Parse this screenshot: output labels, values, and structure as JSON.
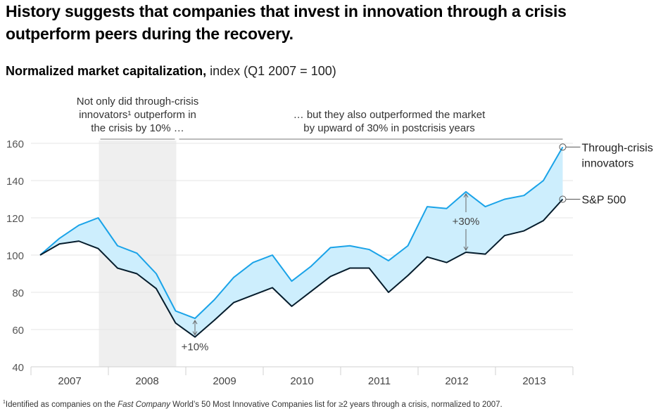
{
  "title": "History suggests that companies that invest in innovation through a crisis outperform peers during the recovery.",
  "subtitle": {
    "bold": "Normalized market capitalization,",
    "light": " index (Q1 2007 = 100)"
  },
  "annotations": {
    "crisis_lines": [
      "Not only did through-crisis",
      "innovators¹ outperform in",
      "the crisis by 10% …"
    ],
    "postcrisis_lines": [
      "… but they also outperformed the market",
      "by upward of 30% in postcrisis years"
    ],
    "crisis_gap_label": "+10%",
    "postcrisis_gap_label": "+30%"
  },
  "colors": {
    "innovators": "#1aa3e8",
    "sp500": "#051c2c",
    "fill": "#cdeefd",
    "crisis_shade": "#efefef"
  },
  "chart_data": {
    "type": "line",
    "title": "Normalized market capitalization, index (Q1 2007 = 100)",
    "xlabel": "",
    "ylabel": "",
    "ylim": [
      40,
      160
    ],
    "yticks": [
      40,
      60,
      80,
      100,
      120,
      140,
      160
    ],
    "year_labels": [
      "2007",
      "2008",
      "2009",
      "2010",
      "2011",
      "2012",
      "2013"
    ],
    "x": [
      "Q1 2007",
      "Q2 2007",
      "Q3 2007",
      "Q4 2007",
      "Q1 2008",
      "Q2 2008",
      "Q3 2008",
      "Q4 2008",
      "Q1 2009",
      "Q2 2009",
      "Q3 2009",
      "Q4 2009",
      "Q1 2010",
      "Q2 2010",
      "Q3 2010",
      "Q4 2010",
      "Q1 2011",
      "Q2 2011",
      "Q3 2011",
      "Q4 2011",
      "Q1 2012",
      "Q2 2012",
      "Q3 2012",
      "Q4 2012",
      "Q1 2013",
      "Q2 2013",
      "Q3 2013",
      "Q4 2013"
    ],
    "series": [
      {
        "name": "Through-crisis innovators",
        "label_lines": [
          "Through-crisis",
          "innovators"
        ],
        "values": [
          100,
          109,
          116,
          120,
          105,
          101,
          90,
          70,
          66,
          76,
          88,
          96,
          100,
          86,
          94,
          104,
          105,
          103,
          97,
          105,
          126,
          125,
          134,
          126,
          130,
          132,
          140,
          158
        ]
      },
      {
        "name": "S&P 500",
        "label_lines": [
          "S&P 500"
        ],
        "values": [
          100,
          106,
          107.5,
          103.5,
          93,
          90,
          82,
          63.5,
          56,
          65,
          74.5,
          78.5,
          82.5,
          72.5,
          80.5,
          88.5,
          93,
          93,
          80,
          89,
          99,
          96,
          101.5,
          100.5,
          110.5,
          113,
          118.5,
          130
        ]
      }
    ],
    "crisis_period": [
      "Q4 2007",
      "Q4 2008"
    ],
    "grid": true,
    "legend": "right, inline at line ends"
  },
  "footnote": {
    "marker": "1",
    "pre": "Identified as companies on the ",
    "italic": "Fast Company",
    "post": " World’s 50 Most Innovative Companies list for ≥2 years through a crisis, normalized to 2007."
  }
}
